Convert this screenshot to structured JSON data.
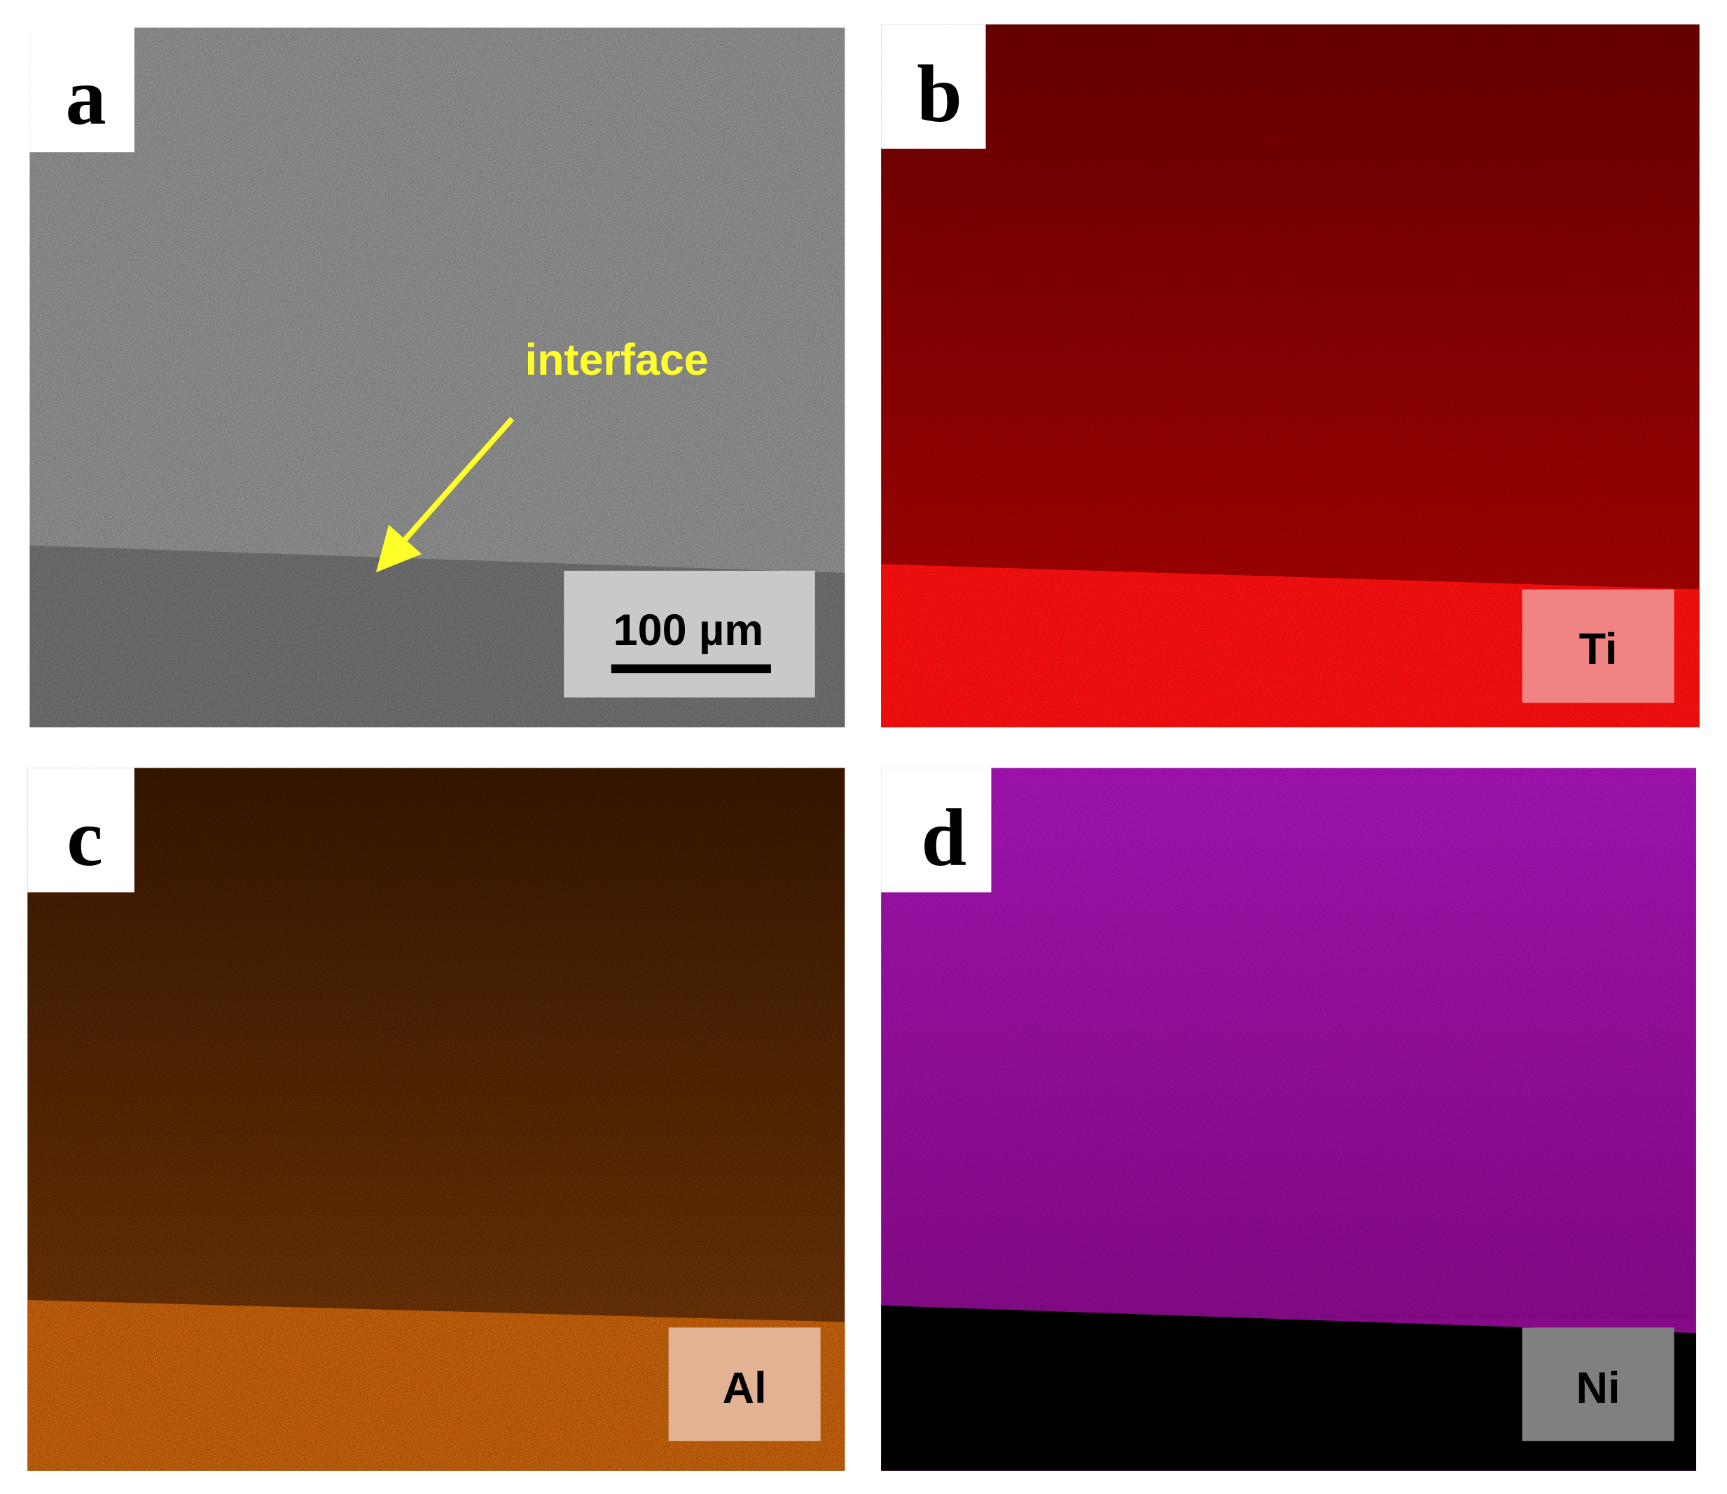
{
  "panels": [
    {
      "label": "a",
      "annotation": "interface",
      "scale_bar": "100 µm"
    },
    {
      "label": "b",
      "element": "Ti"
    },
    {
      "label": "c",
      "element": "Al"
    },
    {
      "label": "d",
      "element": "Ni"
    }
  ]
}
